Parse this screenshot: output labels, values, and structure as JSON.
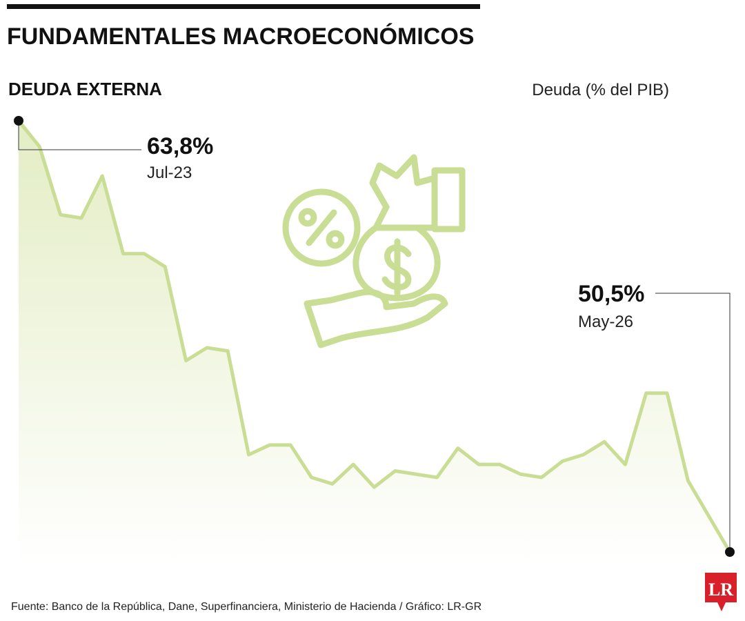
{
  "chart_data": {
    "type": "area",
    "title": "FUNDAMENTALES MACROECONÓMICOS",
    "subtitle": "DEUDA EXTERNA",
    "y_label": "Deuda (% del PIB)",
    "source": "Fuente: Banco de la República, Dane, Superfinanciera, Ministerio de Hacienda / Gráfico: LR-GR",
    "color": "#c9dd94",
    "categories": [
      "Jul-23",
      null,
      null,
      null,
      null,
      null,
      null,
      null,
      null,
      null,
      null,
      null,
      null,
      null,
      null,
      null,
      null,
      null,
      null,
      null,
      null,
      null,
      null,
      null,
      null,
      null,
      null,
      null,
      null,
      null,
      null,
      null,
      null,
      null,
      "May-26"
    ],
    "values": [
      63.8,
      63.0,
      60.9,
      60.8,
      62.1,
      59.7,
      59.7,
      59.3,
      56.4,
      56.8,
      56.7,
      53.5,
      53.8,
      53.8,
      52.8,
      52.6,
      53.2,
      52.5,
      53.0,
      52.9,
      52.8,
      53.7,
      53.2,
      53.2,
      52.9,
      52.8,
      53.3,
      53.5,
      53.9,
      53.2,
      55.4,
      55.4,
      52.7,
      51.6,
      50.5
    ],
    "value_labels": [
      "63,8%",
      null,
      null,
      null,
      null,
      null,
      null,
      null,
      null,
      null,
      null,
      null,
      null,
      null,
      null,
      null,
      null,
      null,
      null,
      null,
      null,
      null,
      null,
      null,
      null,
      null,
      null,
      null,
      null,
      null,
      null,
      null,
      null,
      null,
      "50,5%"
    ]
  },
  "logo": "LR"
}
